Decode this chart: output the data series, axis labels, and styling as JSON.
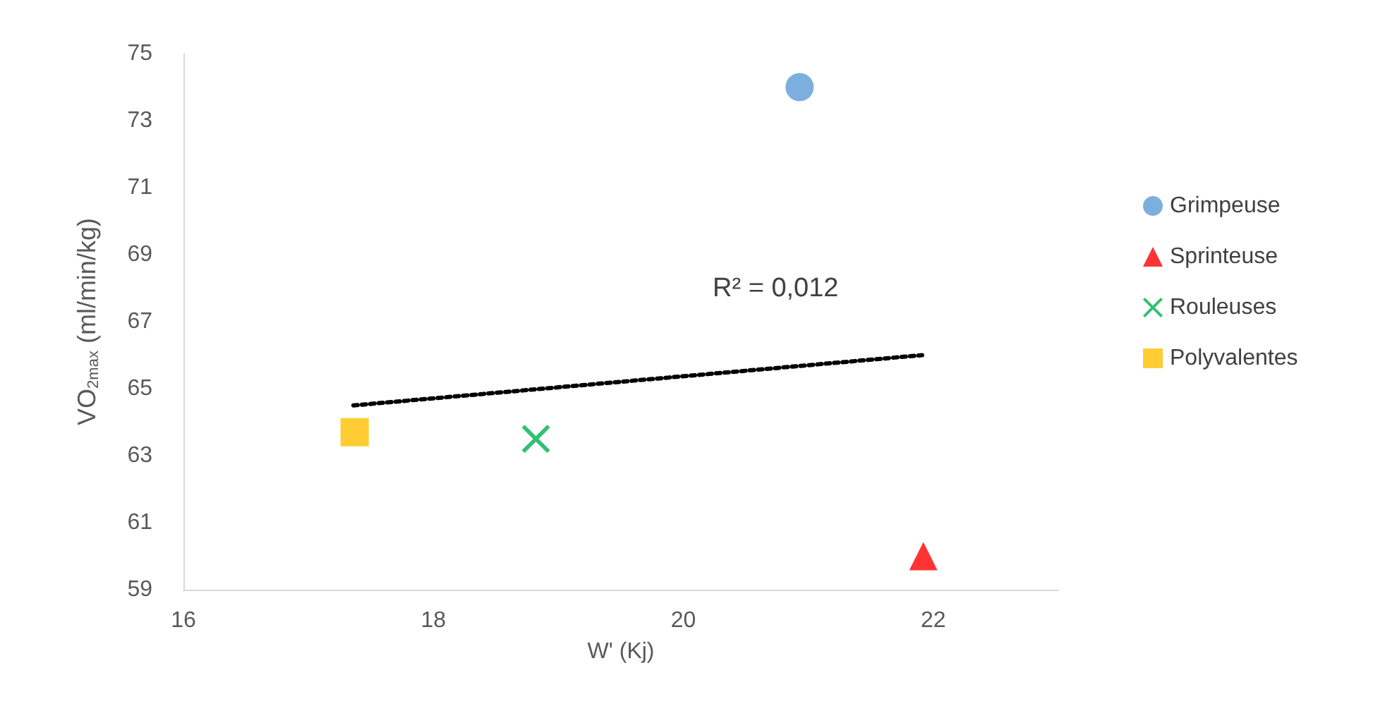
{
  "chart_data": {
    "type": "scatter",
    "xlabel": "W' (Kj)",
    "ylabel": "VO$_{2max}$ (ml/min/kg)",
    "xlim": [
      16,
      23
    ],
    "xticks": [
      16,
      18,
      20,
      22
    ],
    "ylim": [
      59,
      75
    ],
    "yticks": [
      59,
      61,
      63,
      65,
      67,
      69,
      71,
      73,
      75
    ],
    "grid": false,
    "legend": "right",
    "series": [
      {
        "name": "Grimpeuse",
        "color": "#5b9bd5",
        "marker": "circle",
        "x": [
          20.93
        ],
        "values": [
          74.0
        ]
      },
      {
        "name": "Sprinteuse",
        "color": "#ff0000",
        "marker": "triangle",
        "x": [
          21.92
        ],
        "values": [
          60.0
        ]
      },
      {
        "name": "Rouleuses",
        "color": "#00b050",
        "marker": "cross",
        "x": [
          18.82
        ],
        "values": [
          63.5
        ]
      },
      {
        "name": "Polyvalentes",
        "color": "#ffc000",
        "marker": "square",
        "x": [
          17.37
        ],
        "values": [
          63.7
        ]
      },
      {
        "type": "line",
        "color": "#000000",
        "marker": "none",
        "line_style": "dotted",
        "x": [
          17.36,
          21.91
        ],
        "values": [
          64.5,
          66.0
        ]
      }
    ],
    "annotations": [
      "R² = 0,012"
    ]
  }
}
